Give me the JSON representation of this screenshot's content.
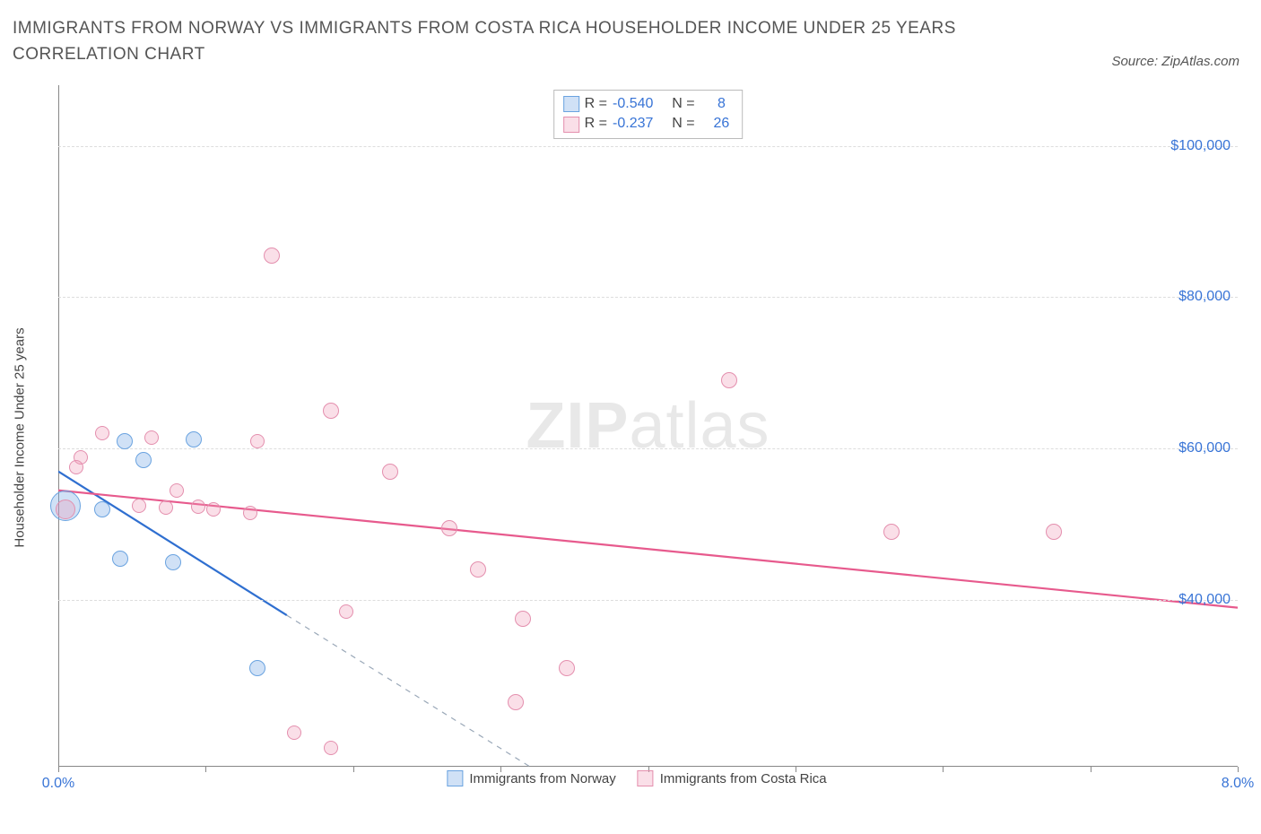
{
  "title": "IMMIGRANTS FROM NORWAY VS IMMIGRANTS FROM COSTA RICA HOUSEHOLDER INCOME UNDER 25 YEARS CORRELATION CHART",
  "source_label": "Source: ZipAtlas.com",
  "y_axis_label": "Householder Income Under 25 years",
  "watermark": {
    "part1": "ZIP",
    "part2": "atlas"
  },
  "x_axis": {
    "min": 0.0,
    "max": 8.0,
    "ticks": [
      0,
      1,
      2,
      3,
      4,
      5,
      6,
      7,
      8
    ],
    "label_min": "0.0%",
    "label_max": "8.0%"
  },
  "y_axis": {
    "min": 18000,
    "max": 108000,
    "grid": [
      40000,
      60000,
      80000,
      100000
    ],
    "grid_labels": [
      "$40,000",
      "$60,000",
      "$80,000",
      "$100,000"
    ]
  },
  "colors": {
    "series1_fill": "rgba(120,170,230,0.35)",
    "series1_stroke": "#6aa3e0",
    "series1_line": "#2f6fd0",
    "series2_fill": "rgba(240,150,180,0.30)",
    "series2_stroke": "#e48fae",
    "series2_line": "#e75a8d",
    "tick_text": "#3874d6",
    "grid": "#dddddd"
  },
  "series": [
    {
      "name": "Immigrants from Norway",
      "key": "norway",
      "R": "-0.540",
      "N": "8",
      "trend": {
        "x1": 0.0,
        "y1": 57000,
        "x2": 1.55,
        "y2": 38000,
        "dash_to_x": 3.2,
        "dash_to_y": 18000
      },
      "points": [
        {
          "x": 0.45,
          "y": 61000,
          "r": 9
        },
        {
          "x": 0.92,
          "y": 61200,
          "r": 9
        },
        {
          "x": 0.58,
          "y": 58500,
          "r": 9
        },
        {
          "x": 0.05,
          "y": 52500,
          "r": 17
        },
        {
          "x": 0.3,
          "y": 52000,
          "r": 9
        },
        {
          "x": 0.42,
          "y": 45500,
          "r": 9
        },
        {
          "x": 0.78,
          "y": 45000,
          "r": 9
        },
        {
          "x": 1.35,
          "y": 31000,
          "r": 9
        }
      ]
    },
    {
      "name": "Immigrants from Costa Rica",
      "key": "costarica",
      "R": "-0.237",
      "N": "26",
      "trend": {
        "x1": 0.0,
        "y1": 54500,
        "x2": 8.0,
        "y2": 39000
      },
      "points": [
        {
          "x": 1.45,
          "y": 85500,
          "r": 9
        },
        {
          "x": 4.55,
          "y": 69000,
          "r": 9
        },
        {
          "x": 1.85,
          "y": 65000,
          "r": 9
        },
        {
          "x": 0.3,
          "y": 62000,
          "r": 8
        },
        {
          "x": 0.63,
          "y": 61500,
          "r": 8
        },
        {
          "x": 1.35,
          "y": 61000,
          "r": 8
        },
        {
          "x": 0.15,
          "y": 58800,
          "r": 8
        },
        {
          "x": 0.12,
          "y": 57500,
          "r": 8
        },
        {
          "x": 2.25,
          "y": 57000,
          "r": 9
        },
        {
          "x": 0.8,
          "y": 54500,
          "r": 8
        },
        {
          "x": 0.05,
          "y": 52000,
          "r": 11
        },
        {
          "x": 0.55,
          "y": 52500,
          "r": 8
        },
        {
          "x": 0.73,
          "y": 52200,
          "r": 8
        },
        {
          "x": 0.95,
          "y": 52300,
          "r": 8
        },
        {
          "x": 1.05,
          "y": 52000,
          "r": 8
        },
        {
          "x": 1.3,
          "y": 51500,
          "r": 8
        },
        {
          "x": 2.65,
          "y": 49500,
          "r": 9
        },
        {
          "x": 5.65,
          "y": 49000,
          "r": 9
        },
        {
          "x": 6.75,
          "y": 49000,
          "r": 9
        },
        {
          "x": 2.85,
          "y": 44000,
          "r": 9
        },
        {
          "x": 1.95,
          "y": 38500,
          "r": 8
        },
        {
          "x": 3.15,
          "y": 37500,
          "r": 9
        },
        {
          "x": 3.45,
          "y": 31000,
          "r": 9
        },
        {
          "x": 3.1,
          "y": 26500,
          "r": 9
        },
        {
          "x": 1.6,
          "y": 22500,
          "r": 8
        },
        {
          "x": 1.85,
          "y": 20500,
          "r": 8
        }
      ]
    }
  ],
  "stats_labels": {
    "R": "R =",
    "N": "N ="
  },
  "legend": {
    "series1": "Immigrants from Norway",
    "series2": "Immigrants from Costa Rica"
  }
}
